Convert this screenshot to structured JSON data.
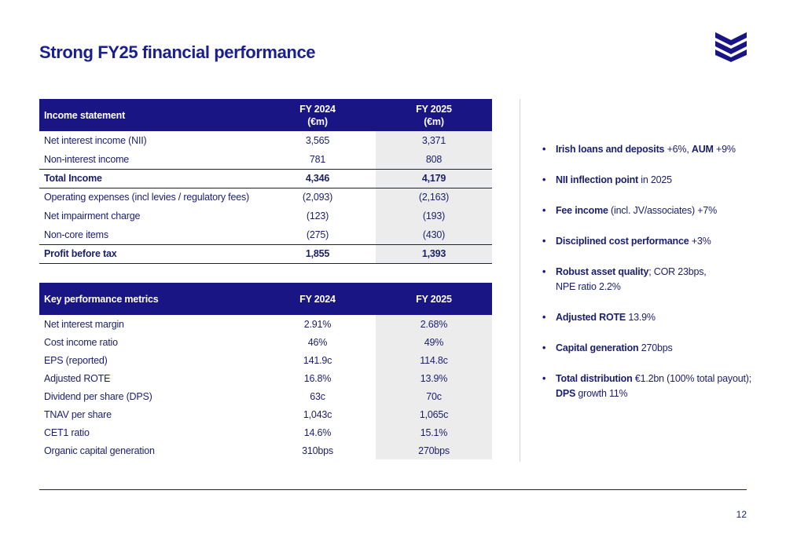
{
  "title": "Strong FY25 financial performance",
  "page_number": "12",
  "colors": {
    "brand": "#1a1585",
    "highlight": "#ececec"
  },
  "logo": {
    "icon": "bank-logo-chevrons-icon"
  },
  "income_statement": {
    "header": [
      "Income statement",
      "FY 2024\n(€m)",
      "FY 2025\n(€m)"
    ],
    "header_label": "Income statement",
    "header_fy24_line1": "FY 2024",
    "header_fy24_line2": "(€m)",
    "header_fy25_line1": "FY 2025",
    "header_fy25_line2": "(€m)",
    "rows": [
      {
        "label": "Net interest income (NII)",
        "fy2024": "3,565",
        "fy2025": "3,371",
        "bold": false
      },
      {
        "label": "Non-interest income",
        "fy2024": "781",
        "fy2025": "808",
        "bold": false
      },
      {
        "label": "Total Income",
        "fy2024": "4,346",
        "fy2025": "4,179",
        "bold": true
      },
      {
        "label": "Operating expenses (incl levies / regulatory fees)",
        "fy2024": "(2,093)",
        "fy2025": "(2,163)",
        "bold": false
      },
      {
        "label": "Net impairment charge",
        "fy2024": "(123)",
        "fy2025": "(193)",
        "bold": false
      },
      {
        "label": "Non-core items",
        "fy2024": "(275)",
        "fy2025": "(430)",
        "bold": false
      },
      {
        "label": "Profit before tax",
        "fy2024": "1,855",
        "fy2025": "1,393",
        "bold": true
      }
    ]
  },
  "kpi": {
    "header_label": "Key performance metrics",
    "header_fy24": "FY 2024",
    "header_fy25": "FY 2025",
    "rows": [
      {
        "label": "Net interest margin",
        "fy2024": "2.91%",
        "fy2025": "2.68%"
      },
      {
        "label": "Cost income ratio",
        "fy2024": "46%",
        "fy2025": "49%"
      },
      {
        "label": "EPS (reported)",
        "fy2024": "141.9c",
        "fy2025": "114.8c"
      },
      {
        "label": "Adjusted ROTE",
        "fy2024": "16.8%",
        "fy2025": "13.9%"
      },
      {
        "label": "Dividend per share (DPS)",
        "fy2024": "63c",
        "fy2025": "70c"
      },
      {
        "label": "TNAV per share",
        "fy2024": "1,043c",
        "fy2025": "1,065c"
      },
      {
        "label": "CET1 ratio",
        "fy2024": "14.6%",
        "fy2025": "15.1%"
      },
      {
        "label": "Organic capital generation",
        "fy2024": "310bps",
        "fy2025": "270bps"
      }
    ]
  },
  "highlights": [
    {
      "parts": [
        {
          "b": "Irish loans and deposits"
        },
        {
          "t": " +6%, "
        },
        {
          "b": "AUM"
        },
        {
          "t": " +9%"
        }
      ]
    },
    {
      "parts": [
        {
          "b": "NII inflection point"
        },
        {
          "t": " in 2025"
        }
      ]
    },
    {
      "parts": [
        {
          "b": "Fee income"
        },
        {
          "t": " (incl. JV/associates) +7%"
        }
      ]
    },
    {
      "parts": [
        {
          "b": "Disciplined cost performance"
        },
        {
          "t": " +3%"
        }
      ]
    },
    {
      "parts": [
        {
          "b": "Robust asset quality"
        },
        {
          "t": "; COR 23bps,"
        },
        {
          "br": true
        },
        {
          "t": "NPE ratio 2.2%"
        }
      ]
    },
    {
      "parts": [
        {
          "b": "Adjusted ROTE"
        },
        {
          "t": " 13.9%"
        }
      ]
    },
    {
      "parts": [
        {
          "b": "Capital generation"
        },
        {
          "t": " 270bps"
        }
      ]
    },
    {
      "parts": [
        {
          "b": "Total distribution"
        },
        {
          "t": " €1.2bn (100% total payout);"
        },
        {
          "br": true
        },
        {
          "b": "DPS"
        },
        {
          "t": " growth 11%"
        }
      ]
    }
  ]
}
